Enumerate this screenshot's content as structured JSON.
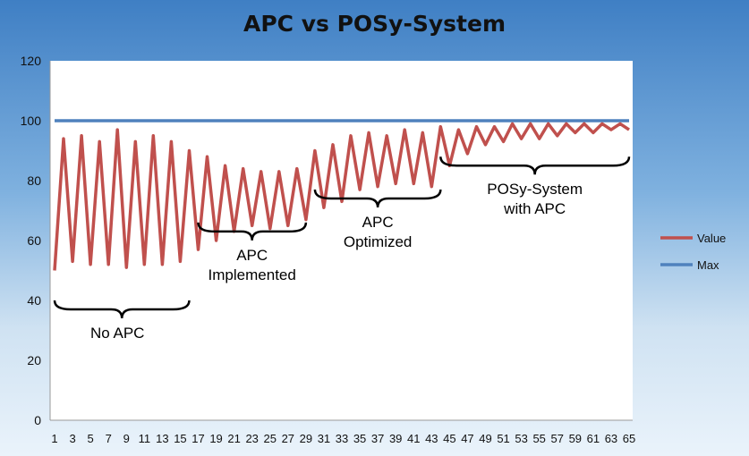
{
  "chart_data": {
    "type": "line",
    "title": "APC vs POSy-System",
    "xlabel": "",
    "ylabel": "",
    "ylim": [
      0,
      120
    ],
    "yticks": [
      0,
      20,
      40,
      60,
      80,
      100,
      120
    ],
    "x": [
      1,
      2,
      3,
      4,
      5,
      6,
      7,
      8,
      9,
      10,
      11,
      12,
      13,
      14,
      15,
      16,
      17,
      18,
      19,
      20,
      21,
      22,
      23,
      24,
      25,
      26,
      27,
      28,
      29,
      30,
      31,
      32,
      33,
      34,
      35,
      36,
      37,
      38,
      39,
      40,
      41,
      42,
      43,
      44,
      45,
      46,
      47,
      48,
      49,
      50,
      51,
      52,
      53,
      54,
      55,
      56,
      57,
      58,
      59,
      60,
      61,
      62,
      63,
      64,
      65
    ],
    "xtick_labels": [
      "1",
      "3",
      "5",
      "7",
      "9",
      "11",
      "13",
      "15",
      "17",
      "19",
      "21",
      "23",
      "25",
      "27",
      "29",
      "31",
      "33",
      "35",
      "37",
      "39",
      "41",
      "43",
      "45",
      "47",
      "49",
      "51",
      "53",
      "55",
      "57",
      "59",
      "61",
      "63",
      "65"
    ],
    "grid": false,
    "legend": "right",
    "series": [
      {
        "name": "Value",
        "color": "#c0504d",
        "values": [
          50,
          94,
          53,
          95,
          52,
          93,
          52,
          97,
          51,
          93,
          52,
          95,
          52,
          93,
          53,
          90,
          57,
          88,
          60,
          85,
          63,
          84,
          65,
          83,
          64,
          83,
          65,
          84,
          67,
          90,
          71,
          92,
          73,
          95,
          77,
          96,
          78,
          95,
          79,
          97,
          79,
          96,
          78,
          98,
          85,
          97,
          89,
          98,
          92,
          98,
          93,
          99,
          94,
          99,
          94,
          99,
          95,
          99,
          96,
          99,
          96,
          99,
          97,
          99,
          97
        ]
      },
      {
        "name": "Max",
        "color": "#4f81bd",
        "values": [
          100,
          100,
          100,
          100,
          100,
          100,
          100,
          100,
          100,
          100,
          100,
          100,
          100,
          100,
          100,
          100,
          100,
          100,
          100,
          100,
          100,
          100,
          100,
          100,
          100,
          100,
          100,
          100,
          100,
          100,
          100,
          100,
          100,
          100,
          100,
          100,
          100,
          100,
          100,
          100,
          100,
          100,
          100,
          100,
          100,
          100,
          100,
          100,
          100,
          100,
          100,
          100,
          100,
          100,
          100,
          100,
          100,
          100,
          100,
          100,
          100,
          100,
          100,
          100,
          100
        ]
      }
    ],
    "annotations": [
      {
        "lines": [
          "No APC"
        ],
        "from_x": 1,
        "to_x": 16,
        "brace_y": 40
      },
      {
        "lines": [
          "APC",
          "Implemented"
        ],
        "from_x": 17,
        "to_x": 29,
        "brace_y": 66
      },
      {
        "lines": [
          "APC",
          "Optimized"
        ],
        "from_x": 30,
        "to_x": 44,
        "brace_y": 77
      },
      {
        "lines": [
          "POSy-System",
          "with APC"
        ],
        "from_x": 44,
        "to_x": 65,
        "brace_y": 88
      }
    ]
  }
}
